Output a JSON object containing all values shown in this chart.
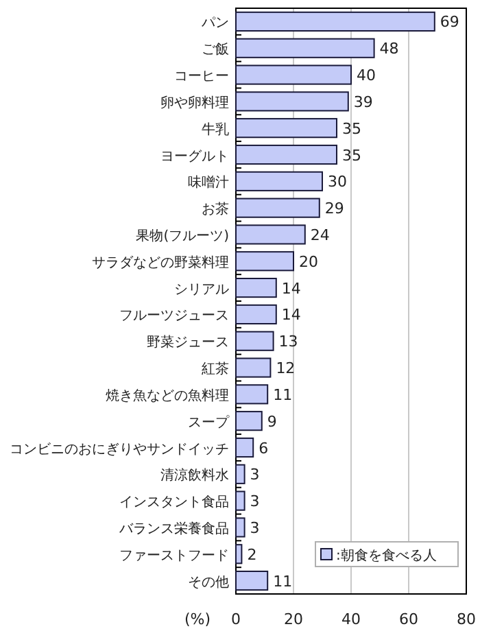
{
  "chart_data": {
    "type": "bar",
    "orientation": "horizontal",
    "categories": [
      "パン",
      "ご飯",
      "コーヒー",
      "卵や卵料理",
      "牛乳",
      "ヨーグルト",
      "味噌汁",
      "お茶",
      "果物(フルーツ)",
      "サラダなどの野菜料理",
      "シリアル",
      "フルーツジュース",
      "野菜ジュース",
      "紅茶",
      "焼き魚などの魚料理",
      "スープ",
      "コンビニのおにぎりやサンドイッチ",
      "清涼飲料水",
      "インスタント食品",
      "バランス栄養食品",
      "ファーストフード",
      "その他"
    ],
    "series": [
      {
        "name": ":朝食を食べる人",
        "color": "#c4cbf8",
        "values": [
          69,
          48,
          40,
          39,
          35,
          35,
          30,
          29,
          24,
          20,
          14,
          14,
          13,
          12,
          11,
          9,
          6,
          3,
          3,
          3,
          2,
          11
        ]
      }
    ],
    "xlabel": "(%)",
    "xlim": [
      0,
      80
    ],
    "xticks": [
      0,
      20,
      40,
      60,
      80
    ],
    "grid": "x",
    "legend": "bottom right",
    "data_labels": true
  }
}
